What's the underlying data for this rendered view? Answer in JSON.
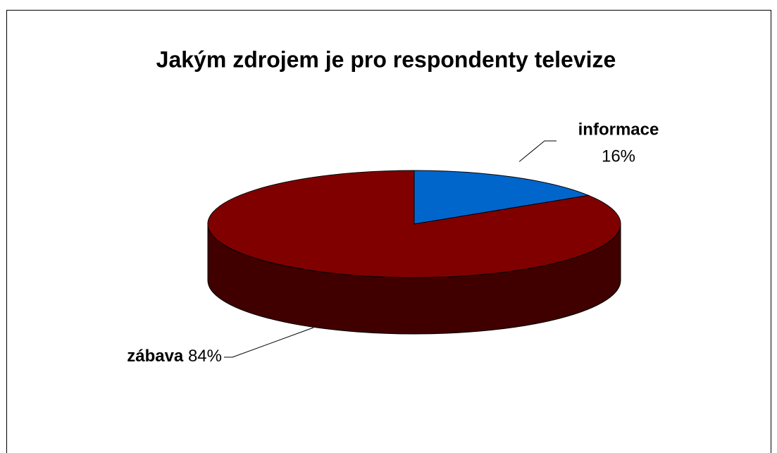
{
  "chart_data": {
    "type": "pie3d",
    "title": "Jakým zdrojem je pro respondenty televize",
    "categories": [
      "informace",
      "zábava"
    ],
    "values": [
      16,
      84
    ],
    "value_labels": [
      "16%",
      "84%"
    ],
    "colors": [
      "#0066cc",
      "#800000"
    ]
  }
}
